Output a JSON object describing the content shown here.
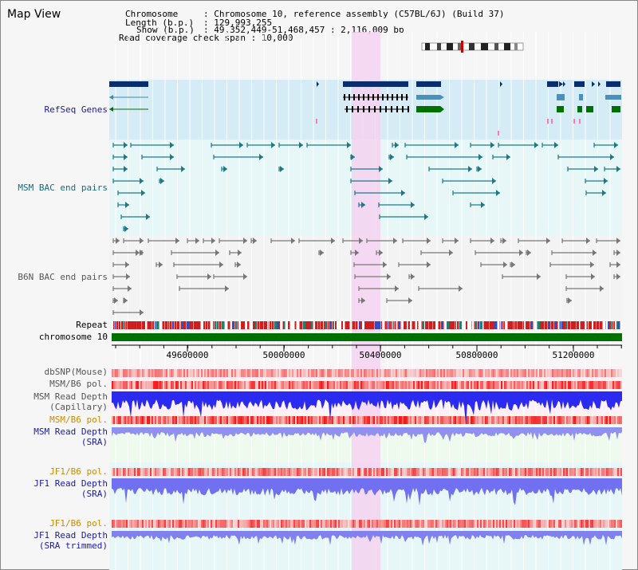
{
  "title": "Map View",
  "info": {
    "chromosome_key": "Chromosome",
    "chromosome_value": ": Chromosome 10, reference assembly (C57BL/6J) (Build 37)",
    "length_key": "Length (b.p.)",
    "length_value": ": 129,993,255",
    "show_key": "Show (b.p.)",
    "show_value": ": 49,352,449-51,468,457 : 2,116,009 bp",
    "read_coverage": "Read coverage check span : 10,000"
  },
  "tracks": {
    "refseq": "RefSeq Genes",
    "msm_bac": "MSM BAC end pairs",
    "b6n_bac": "B6N BAC end pairs",
    "repeat": "Repeat",
    "chromosome": "chromosome 10",
    "dbsnp": "dbSNP(Mouse)",
    "msm_b6_pol_1": "MSM/B6 pol.",
    "msm_read_depth_1a": "MSM Read Depth",
    "msm_read_depth_1b": "(Capillary)",
    "msm_b6_pol_2": "MSM/B6 pol.",
    "msm_read_depth_2a": "MSM Read Depth",
    "msm_read_depth_2b": "(SRA)",
    "jf1_b6_pol_1": "JF1/B6 pol.",
    "jf1_read_depth_1a": "JF1 Read Depth",
    "jf1_read_depth_1b": "(SRA)",
    "jf1_b6_pol_2": "JF1/B6 pol.",
    "jf1_read_depth_2a": "JF1 Read Depth",
    "jf1_read_depth_2b": "(SRA trimmed)"
  },
  "axis": {
    "ticks": [
      "49600000",
      "50000000",
      "50400000",
      "50800000",
      "51200000"
    ]
  },
  "colors": {
    "refseq_bg": "#d5ecf6",
    "bac_bg": "#e7f7f7",
    "b6n_bg": "#f3f3f3",
    "highlight": "#f4d2f0",
    "chromosome": "#007000",
    "dark_gene": "#0a2d6e",
    "teal": "#1a7a8a",
    "gray": "#777777",
    "label_blue": "#1a1aaa",
    "label_teal": "#1a6a7a",
    "label_orange": "#d08a00",
    "label_gray": "#555555"
  }
}
